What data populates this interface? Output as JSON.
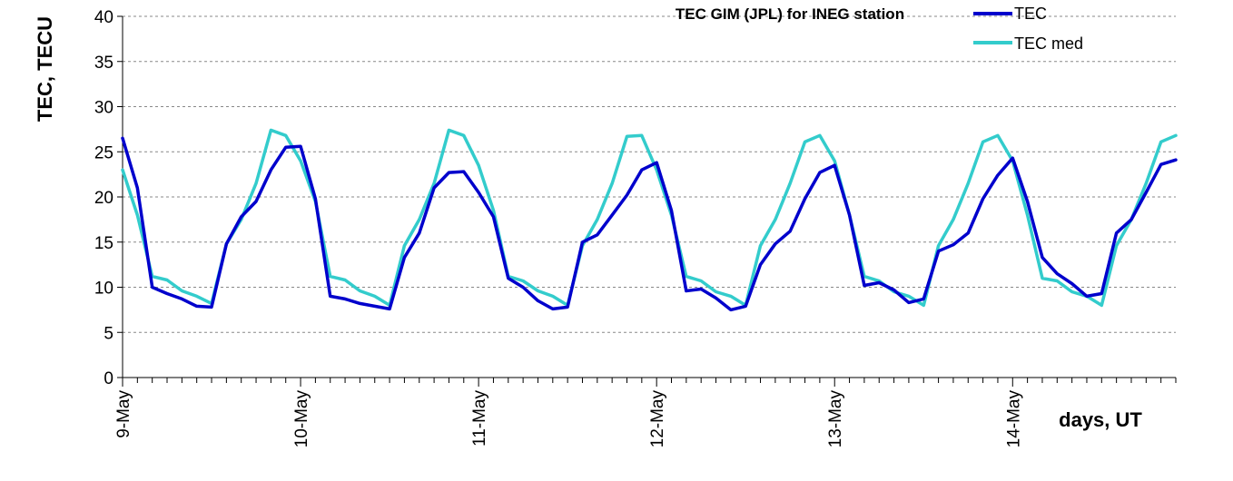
{
  "chart_data": {
    "type": "line",
    "title": "TEC GIM (JPL) for INEG station",
    "xlabel": "days, UT",
    "ylabel": "TEC, TECU",
    "ylim": [
      0,
      40
    ],
    "yticks": [
      "0",
      "5",
      "10",
      "15",
      "20",
      "25",
      "30",
      "35",
      "40"
    ],
    "x_start": 0,
    "x_step_hours": 2,
    "x_end": 142,
    "day_labels": [
      "9-May",
      "10-May",
      "11-May",
      "12-May",
      "13-May",
      "14-May"
    ],
    "grid": true,
    "legend_position": "top-right",
    "series": [
      {
        "name": "TEC",
        "color": "#0000cc",
        "values": [
          26.5,
          21.0,
          10.0,
          9.3,
          8.7,
          7.9,
          7.8,
          14.8,
          17.8,
          19.5,
          23.0,
          25.5,
          25.6,
          19.8,
          9.0,
          8.7,
          8.2,
          7.9,
          7.6,
          13.3,
          16.0,
          21.0,
          22.7,
          22.8,
          20.5,
          17.8,
          11.0,
          10.0,
          8.5,
          7.6,
          7.8,
          15.0,
          15.8,
          18.0,
          20.2,
          23.0,
          23.8,
          18.5,
          9.6,
          9.8,
          8.8,
          7.5,
          7.9,
          12.5,
          14.8,
          16.2,
          19.8,
          22.7,
          23.5,
          18.0,
          10.2,
          10.5,
          9.7,
          8.3,
          8.7,
          14.0,
          14.7,
          16.0,
          19.8,
          22.4,
          24.3,
          19.5,
          13.3,
          11.5,
          10.4,
          9.0,
          9.3,
          16.0,
          17.5,
          20.5,
          23.6,
          24.1
        ]
      },
      {
        "name": "TEC med",
        "color": "#33cccc",
        "values": [
          23.0,
          18.0,
          11.2,
          10.8,
          9.6,
          9.0,
          8.2,
          14.8,
          17.5,
          21.5,
          27.4,
          26.8,
          24.0,
          19.5,
          11.2,
          10.8,
          9.6,
          9.0,
          8.0,
          14.6,
          17.5,
          21.5,
          27.4,
          26.8,
          23.5,
          18.5,
          11.2,
          10.7,
          9.6,
          9.0,
          8.0,
          14.6,
          17.5,
          21.5,
          26.7,
          26.8,
          23.0,
          18.0,
          11.2,
          10.7,
          9.5,
          9.0,
          8.0,
          14.6,
          17.5,
          21.5,
          26.1,
          26.8,
          24.0,
          18.0,
          11.2,
          10.7,
          9.5,
          9.0,
          8.0,
          14.6,
          17.5,
          21.5,
          26.1,
          26.8,
          24.0,
          18.0,
          11.0,
          10.7,
          9.5,
          9.0,
          8.0,
          14.6,
          17.5,
          21.5,
          26.1,
          26.8
        ]
      }
    ]
  }
}
